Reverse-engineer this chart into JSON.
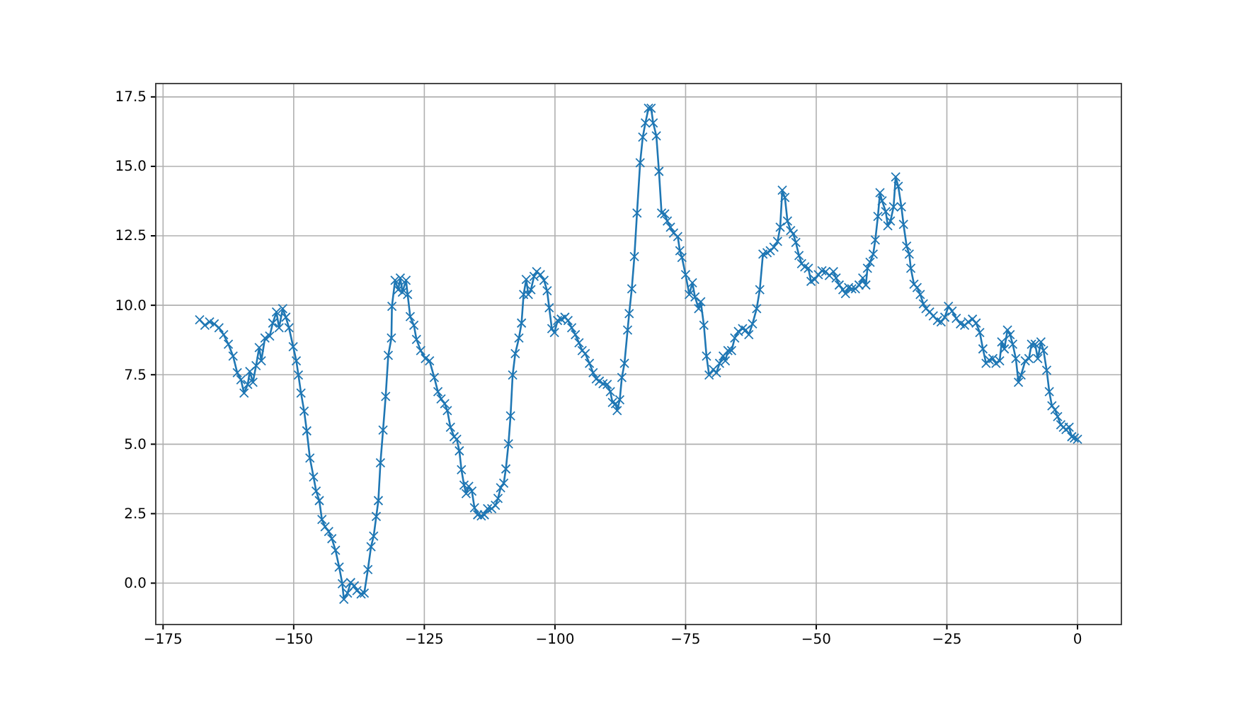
{
  "chart_data": {
    "type": "line",
    "marker": "cross",
    "line_style": "solid",
    "grid": true,
    "xlim": [
      -176.4,
      8.4
    ],
    "ylim": [
      -1.49,
      17.98
    ],
    "xticks": [
      {
        "value": -175,
        "label": "−175"
      },
      {
        "value": -150,
        "label": "−150"
      },
      {
        "value": -125,
        "label": "−125"
      },
      {
        "value": -100,
        "label": "−100"
      },
      {
        "value": -75,
        "label": "−75"
      },
      {
        "value": -50,
        "label": "−50"
      },
      {
        "value": -25,
        "label": "−25"
      },
      0
    ],
    "yticks": [
      {
        "value": 0,
        "label": "0.0"
      },
      2.5,
      {
        "value": 5,
        "label": "5.0"
      },
      7.5,
      {
        "value": 10,
        "label": "10.0"
      },
      12.5,
      {
        "value": 15,
        "label": "15.0"
      },
      17.5
    ],
    "series": [
      {
        "color": "#1f77b4",
        "x": [
          -168,
          -167,
          -166.1,
          -165.2,
          -164.3,
          -163.4,
          -162.5,
          -161.6,
          -160.8,
          -160.1,
          -159.5,
          -158.8,
          -158.4,
          -157.8,
          -157.2,
          -156.6,
          -156.2,
          -155.5,
          -154.6,
          -154,
          -153.3,
          -152.8,
          -152.1,
          -151.5,
          -150.9,
          -150.1,
          -149.5,
          -149.1,
          -148.6,
          -148,
          -147.5,
          -146.9,
          -146.2,
          -145.7,
          -145.1,
          -144.6,
          -144,
          -143.3,
          -142.7,
          -142,
          -141.3,
          -140.7,
          -140.4,
          -139.7,
          -139.1,
          -138.4,
          -137.9,
          -137.1,
          -136.5,
          -135.8,
          -135.2,
          -134.7,
          -134.2,
          -133.8,
          -133.4,
          -132.9,
          -132.4,
          -131.9,
          -131.3,
          -131.2,
          -130.6,
          -130,
          -129.6,
          -129.2,
          -128.5,
          -128.2,
          -127.7,
          -127,
          -126.5,
          -125.7,
          -124.8,
          -124,
          -123.1,
          -122.4,
          -121.8,
          -121.1,
          -120.6,
          -120,
          -119.3,
          -118.8,
          -118.3,
          -117.9,
          -117.4,
          -117,
          -116.5,
          -115.9,
          -115.4,
          -114.8,
          -114.1,
          -113.5,
          -112.9,
          -112.1,
          -111.4,
          -110.9,
          -110.4,
          -109.8,
          -109.4,
          -108.9,
          -108.5,
          -108.1,
          -107.6,
          -106.9,
          -106.4,
          -106,
          -105.5,
          -105.1,
          -104.6,
          -104,
          -103.5,
          -102.8,
          -102.1,
          -101.5,
          -101.1,
          -100.6,
          -100.1,
          -99.5,
          -98.8,
          -98.1,
          -97.5,
          -96.8,
          -96.1,
          -95.4,
          -94.8,
          -94.2,
          -93.4,
          -92.7,
          -92.1,
          -91.5,
          -90.8,
          -90,
          -89.4,
          -89,
          -88.4,
          -88.1,
          -87.6,
          -87.2,
          -86.7,
          -86.1,
          -85.8,
          -85.3,
          -84.8,
          -84.3,
          -83.7,
          -83.2,
          -82.7,
          -82.1,
          -81.6,
          -81.2,
          -80.6,
          -80.1,
          -79.6,
          -79,
          -78.5,
          -77.9,
          -77.3,
          -76.5,
          -76.1,
          -75.7,
          -75,
          -74.3,
          -73.7,
          -73.2,
          -72.5,
          -72.1,
          -71.5,
          -71,
          -70.5,
          -69.7,
          -69.1,
          -68.5,
          -67.8,
          -67.4,
          -66.9,
          -66.2,
          -65.6,
          -64.9,
          -64.1,
          -63.5,
          -62.9,
          -62.2,
          -61.4,
          -60.8,
          -60.2,
          -59.4,
          -58.8,
          -58.1,
          -57.4,
          -56.9,
          -56.5,
          -56,
          -55.5,
          -54.9,
          -54.4,
          -53.9,
          -53.3,
          -52.8,
          -52.2,
          -51.5,
          -51,
          -50.3,
          -49.6,
          -48.9,
          -48.2,
          -47.5,
          -46.7,
          -46.2,
          -45.6,
          -44.9,
          -44.4,
          -43.8,
          -43.2,
          -42.5,
          -41.8,
          -41.1,
          -40.5,
          -40.2,
          -39.7,
          -39.1,
          -38.7,
          -38.2,
          -37.8,
          -37.4,
          -36.7,
          -36.3,
          -35.8,
          -35.2,
          -34.8,
          -34.3,
          -33.7,
          -33.3,
          -32.7,
          -32.2,
          -31.9,
          -31.3,
          -30.7,
          -30.1,
          -29.5,
          -29,
          -28.3,
          -27.6,
          -26.8,
          -26.1,
          -25.4,
          -24.7,
          -24,
          -23.2,
          -22.4,
          -21.6,
          -20.9,
          -20.1,
          -19.4,
          -18.7,
          -18.1,
          -17.5,
          -16.9,
          -16.2,
          -15.6,
          -14.9,
          -14.5,
          -14,
          -13.4,
          -12.9,
          -12.4,
          -11.8,
          -11.3,
          -10.8,
          -10,
          -9.3,
          -8.8,
          -8.1,
          -7.6,
          -7,
          -6.5,
          -5.9,
          -5.4,
          -4.9,
          -4.3,
          -3.8,
          -3.2,
          -2.7,
          -2.2,
          -1.6,
          -1.1,
          -0.6,
          0
        ],
        "values": [
          9.48,
          9.28,
          9.4,
          9.33,
          9.19,
          8.94,
          8.6,
          8.17,
          7.57,
          7.32,
          6.84,
          7.15,
          7.62,
          7.23,
          7.83,
          8.48,
          8,
          8.82,
          8.89,
          9.36,
          9.76,
          9.19,
          9.88,
          9.57,
          9.19,
          8.51,
          8,
          7.49,
          6.84,
          6.19,
          5.48,
          4.5,
          3.82,
          3.31,
          2.97,
          2.29,
          2.03,
          1.86,
          1.6,
          1.18,
          0.58,
          -0.02,
          -0.58,
          -0.36,
          0.02,
          -0.1,
          -0.27,
          -0.39,
          -0.36,
          0.49,
          1.31,
          1.69,
          2.4,
          2.97,
          4.33,
          5.51,
          6.72,
          8.2,
          8.82,
          9.96,
          10.9,
          10.56,
          10.98,
          10.47,
          10.9,
          10.39,
          9.59,
          9.28,
          8.77,
          8.37,
          8.08,
          8,
          7.4,
          6.89,
          6.63,
          6.46,
          6.21,
          5.61,
          5.27,
          5.18,
          4.76,
          4.08,
          3.53,
          3.22,
          3.48,
          3.31,
          2.71,
          2.46,
          2.42,
          2.46,
          2.68,
          2.68,
          2.8,
          3.05,
          3.43,
          3.6,
          4.11,
          5.01,
          6.02,
          7.49,
          8.26,
          8.82,
          9.36,
          10.39,
          10.93,
          10.39,
          10.56,
          11.04,
          11.21,
          11.1,
          10.9,
          10.52,
          9.91,
          9.16,
          9.02,
          9.45,
          9.5,
          9.57,
          9.45,
          9.19,
          8.94,
          8.65,
          8.37,
          8.26,
          7.91,
          7.57,
          7.35,
          7.27,
          7.18,
          7.15,
          6.89,
          6.5,
          6.46,
          6.21,
          6.6,
          7.4,
          7.91,
          9.11,
          9.7,
          10.59,
          11.75,
          13.32,
          15.13,
          16.05,
          16.56,
          17.09,
          17.09,
          16.56,
          16.1,
          14.82,
          13.32,
          13.29,
          13.03,
          12.81,
          12.6,
          12.47,
          11.96,
          11.72,
          11.1,
          10.39,
          10.81,
          10.3,
          9.88,
          10.13,
          9.28,
          8.17,
          7.49,
          7.69,
          7.57,
          7.91,
          8.17,
          8,
          8.37,
          8.37,
          8.82,
          9.06,
          9.16,
          9.11,
          8.94,
          9.33,
          9.88,
          10.56,
          11.84,
          11.89,
          11.96,
          12.09,
          12.3,
          12.81,
          14.14,
          13.88,
          13.03,
          12.69,
          12.57,
          12.26,
          11.79,
          11.5,
          11.38,
          11.33,
          10.86,
          10.93,
          11.1,
          11.24,
          11.21,
          11.07,
          11.21,
          10.98,
          10.73,
          10.56,
          10.42,
          10.64,
          10.59,
          10.59,
          10.73,
          10.98,
          10.73,
          11.33,
          11.55,
          11.84,
          12.35,
          13.2,
          14.05,
          13.76,
          13.37,
          12.86,
          13.03,
          13.54,
          14.62,
          14.28,
          13.54,
          12.91,
          12.13,
          11.84,
          11.33,
          10.76,
          10.64,
          10.39,
          10.05,
          9.88,
          9.76,
          9.62,
          9.45,
          9.4,
          9.57,
          9.96,
          9.79,
          9.53,
          9.33,
          9.28,
          9.4,
          9.5,
          9.36,
          9.02,
          8.43,
          7.91,
          8.03,
          8.08,
          7.91,
          8,
          8.68,
          8.43,
          9.11,
          8.94,
          8.6,
          8.08,
          7.23,
          7.49,
          8,
          8.08,
          8.6,
          8.6,
          8.08,
          8.68,
          8.37,
          7.66,
          6.89,
          6.38,
          6.24,
          5.99,
          5.7,
          5.61,
          5.53,
          5.61,
          5.27,
          5.22,
          5.18
        ]
      }
    ]
  }
}
